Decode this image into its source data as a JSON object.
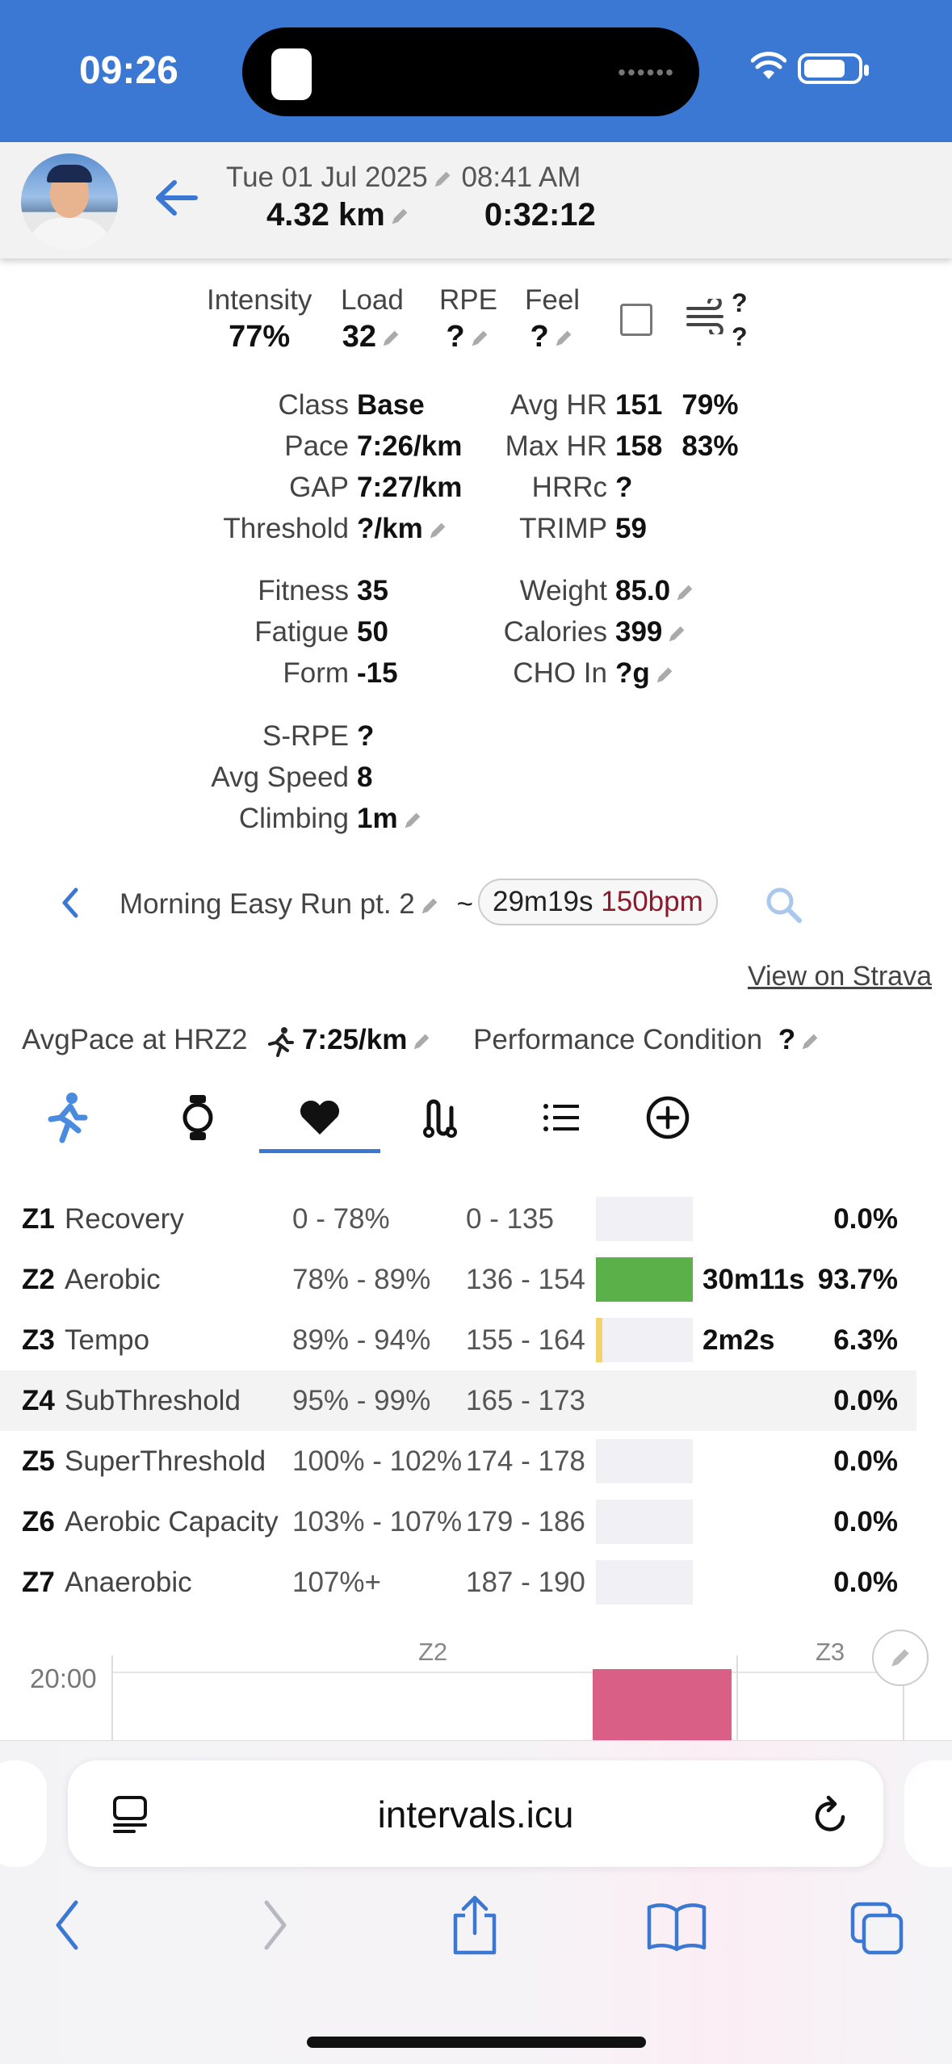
{
  "status": {
    "time": "09:26"
  },
  "header": {
    "date": "Tue 01 Jul 2025",
    "start_time": "08:41 AM",
    "distance": "4.32 km",
    "duration": "0:32:12"
  },
  "top_stats": [
    {
      "label": "Intensity",
      "value": "77%"
    },
    {
      "label": "Load",
      "value": "32"
    },
    {
      "label": "RPE",
      "value": "?"
    },
    {
      "label": "Feel",
      "value": "?"
    }
  ],
  "weather": {
    "q1": "?",
    "q2": "?"
  },
  "left_stats": [
    {
      "label": "Class",
      "value": "Base"
    },
    {
      "label": "Pace",
      "value": "7:26/km"
    },
    {
      "label": "GAP",
      "value": "7:27/km"
    },
    {
      "label": "Threshold",
      "value": "?/km"
    }
  ],
  "right_stats": [
    {
      "label": "Avg HR",
      "value": "151",
      "extra": "79%"
    },
    {
      "label": "Max HR",
      "value": "158",
      "extra": "83%"
    },
    {
      "label": "HRRc",
      "value": "?",
      "extra": ""
    },
    {
      "label": "TRIMP",
      "value": "59",
      "extra": ""
    }
  ],
  "left_stats2": [
    {
      "label": "Fitness",
      "value": "35"
    },
    {
      "label": "Fatigue",
      "value": "50"
    },
    {
      "label": "Form",
      "value": "-15"
    }
  ],
  "right_stats2": [
    {
      "label": "Weight",
      "value": "85.0"
    },
    {
      "label": "Calories",
      "value": "399"
    },
    {
      "label": "CHO In",
      "value": "?g"
    }
  ],
  "left_stats3": [
    {
      "label": "S-RPE",
      "value": "?"
    },
    {
      "label": "Avg Speed",
      "value": "8"
    },
    {
      "label": "Climbing",
      "value": "1m"
    }
  ],
  "activity": {
    "name": "Morning Easy Run pt. 2",
    "tilde": "~",
    "interval_time": "29m19s",
    "interval_bpm": "150bpm"
  },
  "links": {
    "strava": "View on Strava"
  },
  "avgpace": {
    "label": "AvgPace at HRZ2",
    "value": "7:25/km",
    "perf_label": "Performance Condition",
    "perf_value": "?"
  },
  "tabs": [
    "runner-icon",
    "watch-icon",
    "heart-icon",
    "route-icon",
    "list-icon",
    "add-icon"
  ],
  "zones": [
    {
      "id": "Z1",
      "name": "Recovery",
      "pct": "0 - 78%",
      "bpm": "0 - 135",
      "time": "",
      "share": "0.0%",
      "fill": 0,
      "color": "#5cb85c"
    },
    {
      "id": "Z2",
      "name": "Aerobic",
      "pct": "78% - 89%",
      "bpm": "136 - 154",
      "time": "30m11s",
      "share": "93.7%",
      "fill": 100,
      "color": "#5cb04a"
    },
    {
      "id": "Z3",
      "name": "Tempo",
      "pct": "89% - 94%",
      "bpm": "155 - 164",
      "time": "2m2s",
      "share": "6.3%",
      "fill": 6.3,
      "color": "#f1d36a"
    },
    {
      "id": "Z4",
      "name": "SubThreshold",
      "pct": "95% - 99%",
      "bpm": "165 - 173",
      "time": "",
      "share": "0.0%",
      "fill": 0,
      "color": "#e0a040"
    },
    {
      "id": "Z5",
      "name": "SuperThreshold",
      "pct": "100% - 102%",
      "bpm": "174 - 178",
      "time": "",
      "share": "0.0%",
      "fill": 0,
      "color": "#e07040"
    },
    {
      "id": "Z6",
      "name": "Aerobic Capacity",
      "pct": "103% - 107%",
      "bpm": "179 - 186",
      "time": "",
      "share": "0.0%",
      "fill": 0,
      "color": "#d04040"
    },
    {
      "id": "Z7",
      "name": "Anaerobic",
      "pct": "107%+",
      "bpm": "187 - 190",
      "time": "",
      "share": "0.0%",
      "fill": 0,
      "color": "#a02060"
    }
  ],
  "chart": {
    "y_label": "20:00",
    "zone_a": "Z2",
    "zone_b": "Z3",
    "bar_color": "#d95f86"
  },
  "browser": {
    "url": "intervals.icu"
  }
}
